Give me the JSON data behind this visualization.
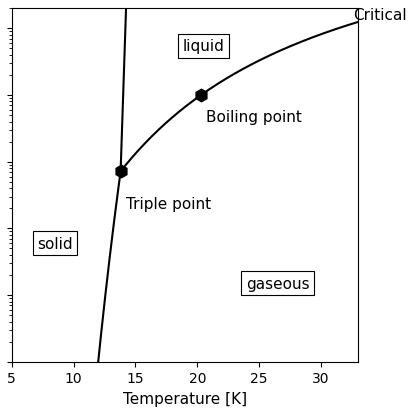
{
  "xlabel": "Temperature [K]",
  "ylabel": "",
  "xlim": [
    5,
    33
  ],
  "triple_point_T": 13.8,
  "triple_point_P": 0.0718,
  "boiling_point_T": 20.3,
  "boiling_point_P": 1.0,
  "critical_point_T": 33.2,
  "critical_point_P": 12.8,
  "solid_label": "solid",
  "liquid_label": "liquid",
  "gaseous_label": "gaseous",
  "critical_label": "Critical",
  "triple_label": "Triple point",
  "boiling_label": "Boiling point",
  "background_color": "#ffffff",
  "line_color": "#000000",
  "label_fontsize": 11,
  "axis_fontsize": 11,
  "tick_fontsize": 10,
  "ylim_bottom": 0.0001,
  "ylim_top": 20.0
}
